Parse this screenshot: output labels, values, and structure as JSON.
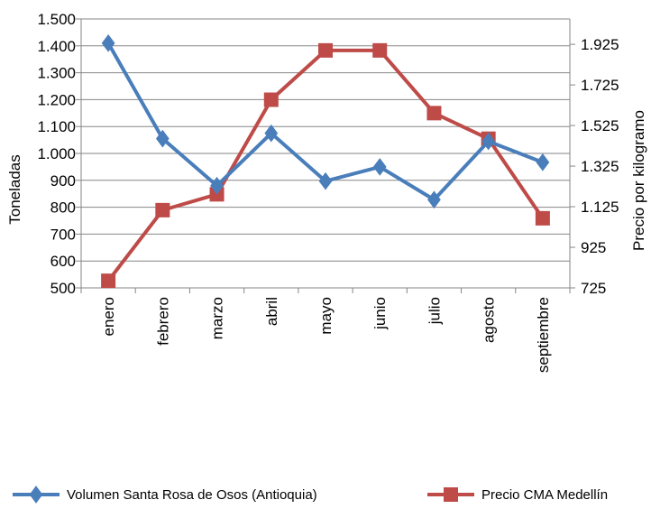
{
  "chart_data": {
    "type": "line",
    "categories": [
      "enero",
      "febrero",
      "marzo",
      "abril",
      "mayo",
      "junio",
      "julio",
      "agosto",
      "septiembre"
    ],
    "series": [
      {
        "name": "Volumen Santa Rosa de Osos (Antioquia)",
        "axis": "left",
        "marker": "diamond",
        "color": "#4a7ebb",
        "values": [
          1410,
          1055,
          880,
          1075,
          897,
          950,
          828,
          1045,
          967
        ]
      },
      {
        "name": "Precio CMA Medellín",
        "axis": "right",
        "marker": "square",
        "color": "#be4b48",
        "values": [
          760,
          1108,
          1186,
          1652,
          1895,
          1895,
          1586,
          1460,
          1068
        ]
      }
    ],
    "ylabel": "Toneladas",
    "ylabel_right": "Precio por kilogramo",
    "ylim": [
      500,
      1500
    ],
    "ylim_right": [
      725,
      2050
    ],
    "yticks_left": [
      "500",
      "600",
      "700",
      "800",
      "900",
      "1.000",
      "1.100",
      "1.200",
      "1.300",
      "1.400",
      "1.500"
    ],
    "yticks_right": [
      "725",
      "925",
      "1.125",
      "1.325",
      "1.525",
      "1.725",
      "1.925"
    ],
    "yticks_right_values": [
      725,
      925,
      1125,
      1325,
      1525,
      1725,
      1925
    ],
    "grid": true,
    "legend_position": "bottom"
  }
}
